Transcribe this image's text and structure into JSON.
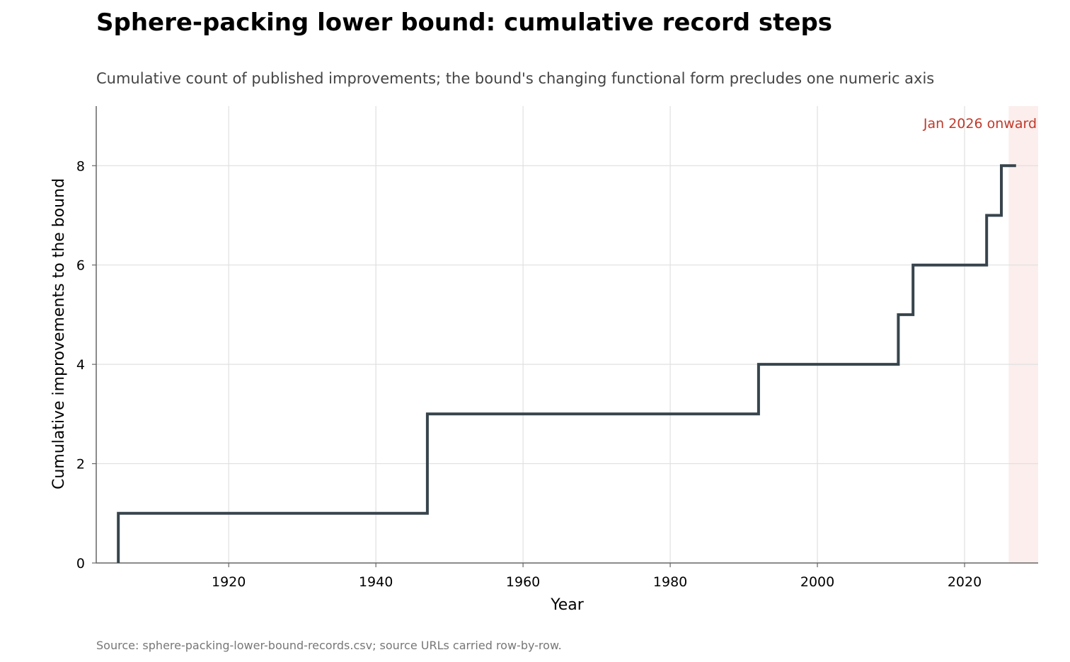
{
  "title": "Sphere-packing lower bound: cumulative record steps",
  "subtitle": "Cumulative count of published improvements; the bound's changing functional form precludes one numeric axis",
  "source": "Source: sphere-packing-lower-bound-records.csv; source URLs carried row-by-row.",
  "colors": {
    "line": "#37444c",
    "grid": "#e0e0e0",
    "axis": "#666666",
    "annotation": "#c0392b",
    "highlight": "#fbeeec"
  },
  "chart_data": {
    "type": "line",
    "step": true,
    "xlabel": "Year",
    "ylabel": "Cumulative improvements to the bound",
    "xlim": [
      1902,
      2030
    ],
    "ylim": [
      0,
      9.2
    ],
    "xticks": [
      1920,
      1940,
      1960,
      1980,
      2000,
      2020
    ],
    "yticks": [
      0,
      2,
      4,
      6,
      8
    ],
    "grid": true,
    "series": [
      {
        "x": [
          1905,
          1905,
          1947,
          1992,
          2011,
          2013,
          2023,
          2025,
          2027
        ],
        "y": [
          0,
          1,
          3,
          4,
          5,
          6,
          7,
          8,
          8
        ]
      }
    ],
    "highlight_region": {
      "x_start": 2026,
      "label": "Jan 2026 onward"
    }
  }
}
